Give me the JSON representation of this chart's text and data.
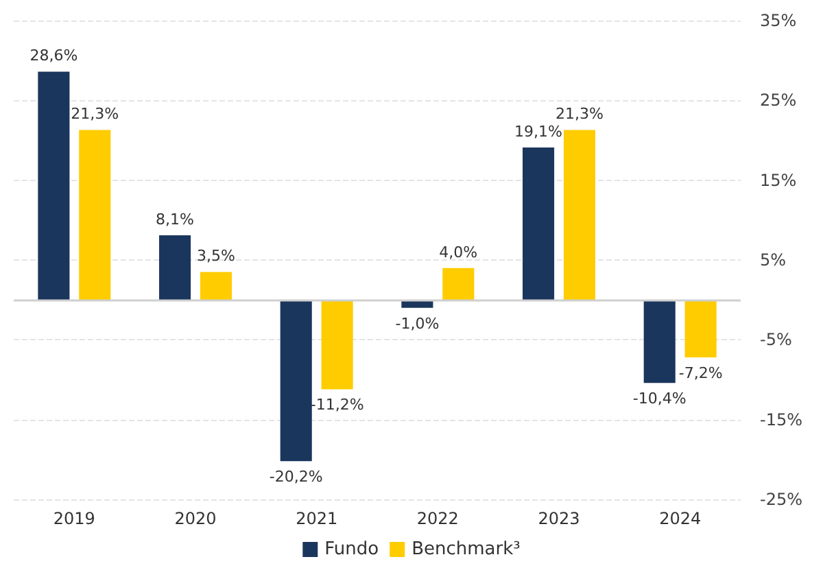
{
  "chart_data": {
    "type": "bar",
    "categories": [
      "2019",
      "2020",
      "2021",
      "2022",
      "2023",
      "2024"
    ],
    "series": [
      {
        "name": "Fundo",
        "color": "#1b365d",
        "values": [
          28.6,
          8.1,
          -20.2,
          -1.0,
          19.1,
          -10.4
        ],
        "value_labels": [
          "28,6%",
          "8,1%",
          "-20,2%",
          "-1,0%",
          "19,1%",
          "-10,4%"
        ]
      },
      {
        "name": "Benchmark³",
        "color": "#ffcc00",
        "values": [
          21.3,
          3.5,
          -11.2,
          4.0,
          21.3,
          -7.2
        ],
        "value_labels": [
          "21,3%",
          "3,5%",
          "-11,2%",
          "4,0%",
          "21,3%",
          "-7,2%"
        ]
      }
    ],
    "ylim": [
      -25,
      35
    ],
    "yticks": [
      {
        "value": -25,
        "label": "-25%"
      },
      {
        "value": -15,
        "label": "-15%"
      },
      {
        "value": -5,
        "label": "-5%"
      },
      {
        "value": 5,
        "label": "5%"
      },
      {
        "value": 15,
        "label": "15%"
      },
      {
        "value": 25,
        "label": "25%"
      },
      {
        "value": 35,
        "label": "35%"
      }
    ],
    "grid": "y",
    "legend": "bottom"
  }
}
